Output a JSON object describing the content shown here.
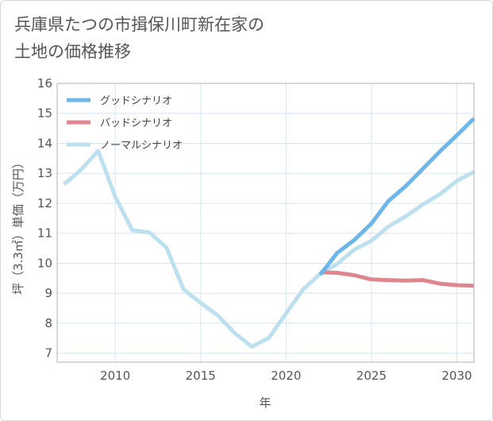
{
  "title": "兵庫県たつの市揖保川町新在家の\n土地の価格推移",
  "chart_data": {
    "type": "line",
    "xlabel": "年",
    "ylabel": "坪（3.3㎡）単価（万円）",
    "xlim": [
      2006.6,
      2031
    ],
    "ylim": [
      6.7,
      16
    ],
    "xticks": [
      2010,
      2015,
      2020,
      2025,
      2030
    ],
    "yticks": [
      7,
      8,
      9,
      10,
      11,
      12,
      13,
      14,
      15,
      16
    ],
    "grid": true,
    "legend_position": "top-left",
    "series": [
      {
        "name": "グッドシナリオ",
        "color": "#6cb6ea",
        "x": [
          2022,
          2023,
          2024,
          2025,
          2026,
          2027,
          2028,
          2029,
          2030,
          2031
        ],
        "y": [
          9.62,
          10.35,
          10.78,
          11.33,
          12.08,
          12.57,
          13.15,
          13.73,
          14.27,
          14.83
        ]
      },
      {
        "name": "バッドシナリオ",
        "color": "#e0868f",
        "x": [
          2022,
          2023,
          2024,
          2025,
          2026,
          2027,
          2028,
          2029,
          2030,
          2031
        ],
        "y": [
          9.7,
          9.68,
          9.6,
          9.46,
          9.44,
          9.42,
          9.44,
          9.32,
          9.27,
          9.25
        ]
      },
      {
        "name": "ノーマルシナリオ",
        "color": "#bde0ee",
        "x": [
          2007,
          2008,
          2009,
          2010,
          2011,
          2012,
          2013,
          2014,
          2015,
          2016,
          2017,
          2018,
          2019,
          2020,
          2021,
          2022,
          2023,
          2024,
          2025,
          2026,
          2027,
          2028,
          2029,
          2030,
          2031
        ],
        "y": [
          12.63,
          13.12,
          13.75,
          12.22,
          11.1,
          11.03,
          10.52,
          9.13,
          8.68,
          8.26,
          7.67,
          7.22,
          7.51,
          8.33,
          9.13,
          9.65,
          9.98,
          10.46,
          10.75,
          11.23,
          11.56,
          11.96,
          12.3,
          12.75,
          13.05
        ]
      }
    ]
  }
}
